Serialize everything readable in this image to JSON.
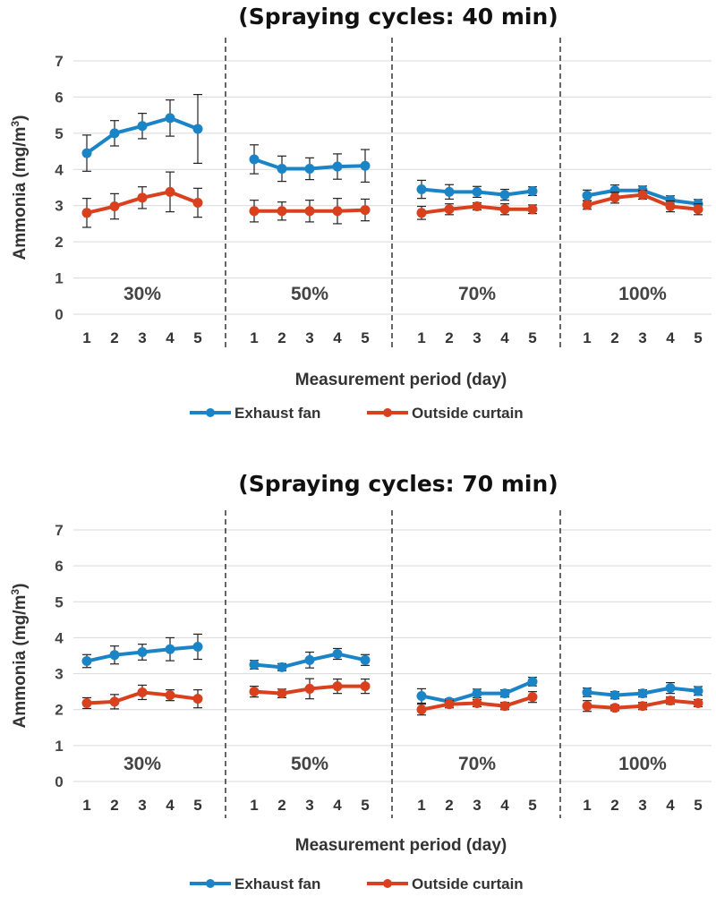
{
  "colors": {
    "exhaust": "#1a84c7",
    "curtain": "#d9401e",
    "grid": "#d9d9d9",
    "divider": "#333333",
    "errorbar": "#222222"
  },
  "chart_data": [
    {
      "type": "line",
      "title": "(Spraying cycles: 40 min)",
      "ylabel": "Ammonia (mg/m3)",
      "ylabel_main": "Ammonia (mg/m",
      "ylabel_sup": "3",
      "ylabel_end": ")",
      "xlabel": "Measurement period (day)",
      "ylim": [
        0,
        7
      ],
      "yticks": [
        "0",
        "1",
        "2",
        "3",
        "4",
        "5",
        "6",
        "7"
      ],
      "groups": [
        "30%",
        "50%",
        "70%",
        "100%"
      ],
      "days": [
        "1",
        "2",
        "3",
        "4",
        "5"
      ],
      "legend": [
        "Exhaust fan",
        "Outside curtain"
      ],
      "series": [
        {
          "name": "Exhaust fan",
          "values": [
            [
              4.45,
              5.0,
              5.2,
              5.42,
              5.12
            ],
            [
              4.28,
              4.02,
              4.02,
              4.08,
              4.1
            ],
            [
              3.45,
              3.38,
              3.38,
              3.3,
              3.4
            ],
            [
              3.28,
              3.42,
              3.42,
              3.15,
              3.05
            ]
          ],
          "errors": [
            [
              0.5,
              0.35,
              0.35,
              0.5,
              0.95
            ],
            [
              0.4,
              0.35,
              0.3,
              0.35,
              0.45
            ],
            [
              0.25,
              0.2,
              0.15,
              0.15,
              0.12
            ],
            [
              0.15,
              0.15,
              0.12,
              0.12,
              0.12
            ]
          ]
        },
        {
          "name": "Outside curtain",
          "values": [
            [
              2.8,
              2.98,
              3.22,
              3.38,
              3.08
            ],
            [
              2.85,
              2.85,
              2.85,
              2.85,
              2.88
            ],
            [
              2.8,
              2.9,
              2.98,
              2.9,
              2.9
            ],
            [
              3.02,
              3.22,
              3.3,
              2.98,
              2.9
            ]
          ],
          "errors": [
            [
              0.4,
              0.35,
              0.3,
              0.55,
              0.4
            ],
            [
              0.3,
              0.25,
              0.3,
              0.35,
              0.3
            ],
            [
              0.18,
              0.15,
              0.1,
              0.15,
              0.12
            ],
            [
              0.12,
              0.15,
              0.12,
              0.15,
              0.15
            ]
          ]
        }
      ]
    },
    {
      "type": "line",
      "title": "(Spraying cycles: 70 min)",
      "ylabel": "Ammonia (mg/m3)",
      "ylabel_main": "Ammonia (mg/m",
      "ylabel_sup": "3",
      "ylabel_end": ")",
      "xlabel": "Measurement period (day)",
      "ylim": [
        0,
        7
      ],
      "yticks": [
        "0",
        "1",
        "2",
        "3",
        "4",
        "5",
        "6",
        "7"
      ],
      "groups": [
        "30%",
        "50%",
        "70%",
        "100%"
      ],
      "days": [
        "1",
        "2",
        "3",
        "4",
        "5"
      ],
      "legend": [
        "Exhaust fan",
        "Outside curtain"
      ],
      "series": [
        {
          "name": "Exhaust fan",
          "values": [
            [
              3.35,
              3.52,
              3.6,
              3.68,
              3.75
            ],
            [
              3.25,
              3.18,
              3.38,
              3.55,
              3.38
            ],
            [
              2.38,
              2.22,
              2.45,
              2.45,
              2.78
            ],
            [
              2.48,
              2.4,
              2.45,
              2.6,
              2.52
            ]
          ],
          "errors": [
            [
              0.18,
              0.25,
              0.22,
              0.32,
              0.35
            ],
            [
              0.12,
              0.1,
              0.22,
              0.15,
              0.15
            ],
            [
              0.2,
              0.08,
              0.12,
              0.1,
              0.12
            ],
            [
              0.12,
              0.1,
              0.1,
              0.15,
              0.12
            ]
          ]
        },
        {
          "name": "Outside curtain",
          "values": [
            [
              2.18,
              2.22,
              2.48,
              2.4,
              2.3
            ],
            [
              2.5,
              2.45,
              2.58,
              2.65,
              2.65
            ],
            [
              2.0,
              2.15,
              2.18,
              2.1,
              2.35
            ],
            [
              2.1,
              2.05,
              2.1,
              2.25,
              2.18
            ]
          ],
          "errors": [
            [
              0.15,
              0.2,
              0.2,
              0.15,
              0.25
            ],
            [
              0.15,
              0.12,
              0.28,
              0.2,
              0.2
            ],
            [
              0.15,
              0.1,
              0.1,
              0.1,
              0.15
            ],
            [
              0.15,
              0.08,
              0.1,
              0.1,
              0.1
            ]
          ]
        }
      ]
    }
  ]
}
